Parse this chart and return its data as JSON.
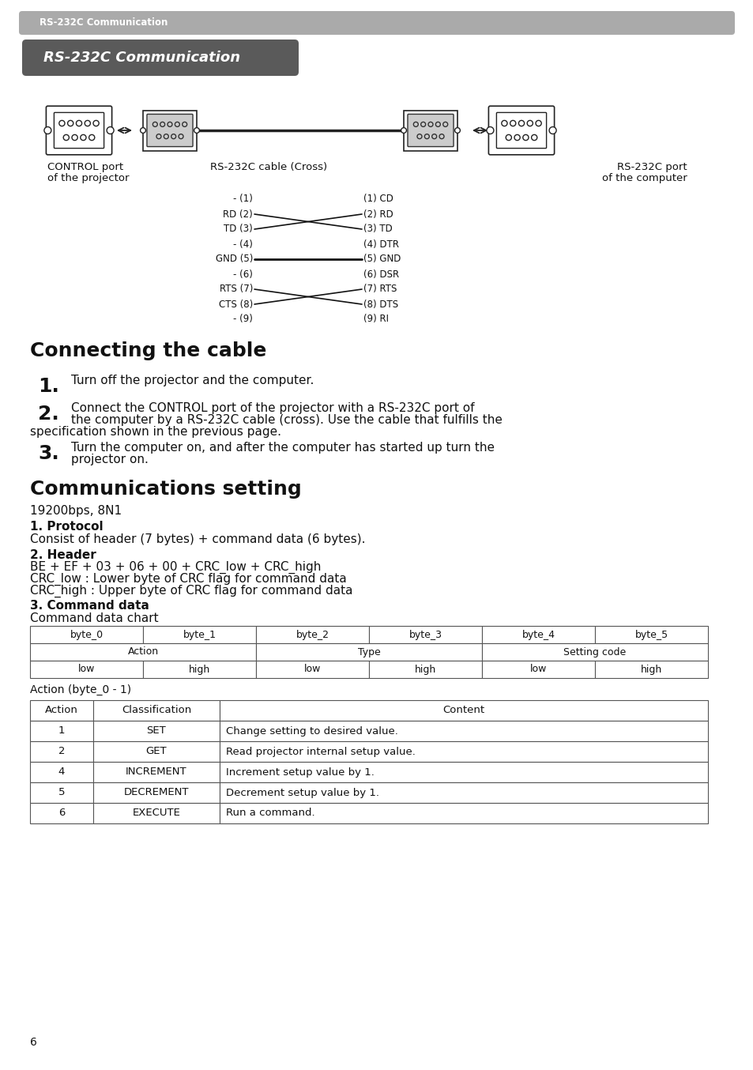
{
  "page_bg": "#ffffff",
  "header_bar_color": "#aaaaaa",
  "header_text": "RS-232C Communication",
  "title_bar_color": "#5a5a5a",
  "title_text": "RS-232C Communication",
  "section1_title": "Connecting the cable",
  "step1": "Turn off the projector and the computer.",
  "step2_line1": "Connect the CONTROL port of the projector with a RS-232C port of",
  "step2_line2": "the computer by a RS-232C cable (cross). Use the cable that fulfills the",
  "step2_line3": "specification shown in the previous page.",
  "step3_line1": "Turn the computer on, and after the computer has started up turn the",
  "step3_line2": "projector on.",
  "section2_title": "Communications setting",
  "bps_text": "19200bps, 8N1",
  "proto_title": "1. Protocol",
  "proto_text": "Consist of header (7 bytes) + command data (6 bytes).",
  "header_title": "2. Header",
  "header_text1": "BE + EF + 03 + 06 + 00 + CRC_low + CRC_high",
  "header_text2": "CRC_low : Lower byte of CRC flag for command data",
  "header_text3": "CRC_high : Upper byte of CRC flag for command data",
  "cmd_title": "3. Command data",
  "cmd_sub": "Command data chart",
  "table1_headers": [
    "byte_0",
    "byte_1",
    "byte_2",
    "byte_3",
    "byte_4",
    "byte_5"
  ],
  "table1_row3": [
    "low",
    "high",
    "low",
    "high",
    "low",
    "high"
  ],
  "table2_caption": "Action (byte_0 - 1)",
  "table2_headers": [
    "Action",
    "Classification",
    "Content"
  ],
  "table2_rows": [
    [
      "1",
      "SET",
      "Change setting to desired value."
    ],
    [
      "2",
      "GET",
      "Read projector internal setup value."
    ],
    [
      "4",
      "INCREMENT",
      "Increment setup value by 1."
    ],
    [
      "5",
      "DECREMENT",
      "Decrement setup value by 1."
    ],
    [
      "6",
      "EXECUTE",
      "Run a command."
    ]
  ],
  "page_num": "6",
  "pins_left": [
    "- (1)",
    "RD (2)",
    "TD (3)",
    "- (4)",
    "GND (5)",
    "- (6)",
    "RTS (7)",
    "CTS (8)",
    "- (9)"
  ],
  "pins_right": [
    "(1) CD",
    "(2) RD",
    "(3) TD",
    "(4) DTR",
    "(5) GND",
    "(6) DSR",
    "(7) RTS",
    "(8) DTS",
    "(9) RI"
  ]
}
